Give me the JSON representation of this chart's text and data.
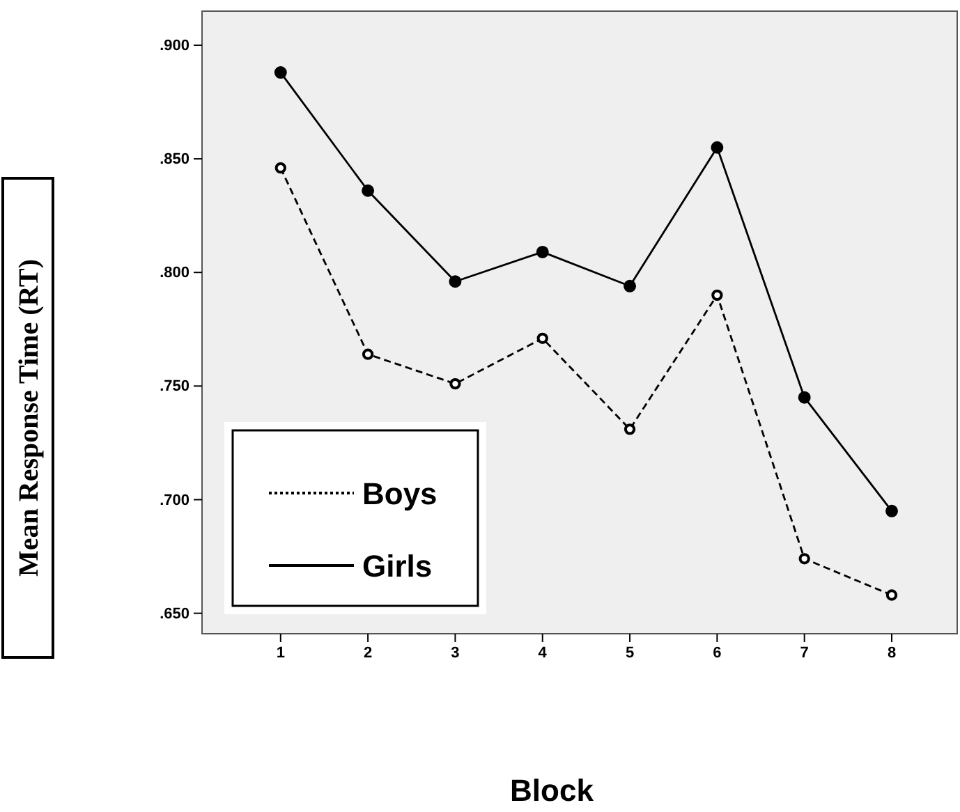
{
  "chart_data": {
    "type": "line",
    "xlabel": "Block",
    "ylabel": "Mean Response Time (RT)",
    "x": [
      1,
      2,
      3,
      4,
      5,
      6,
      7,
      8
    ],
    "series": [
      {
        "name": "Boys",
        "color": "#000000",
        "line_style": "dashed",
        "values": [
          0.846,
          0.764,
          0.751,
          0.771,
          0.731,
          0.79,
          0.674,
          0.658
        ]
      },
      {
        "name": "Girls",
        "color": "#000000",
        "line_style": "solid",
        "values": [
          0.888,
          0.836,
          0.796,
          0.809,
          0.794,
          0.855,
          0.745,
          0.695
        ]
      }
    ],
    "xlim": [
      0.1,
      8.75
    ],
    "xticks": [
      1,
      2,
      3,
      4,
      5,
      6,
      7,
      8
    ],
    "ylim": [
      0.641,
      0.915
    ],
    "yticks": [
      {
        "value": 0.65,
        "label": ".650"
      },
      {
        "value": 0.7,
        "label": ".700"
      },
      {
        "value": 0.75,
        "label": ".750"
      },
      {
        "value": 0.8,
        "label": ".800"
      },
      {
        "value": 0.85,
        "label": ".850"
      },
      {
        "value": 0.9,
        "label": ".900"
      }
    ],
    "marker": "circle",
    "grid": false,
    "legend": "bottom left"
  }
}
